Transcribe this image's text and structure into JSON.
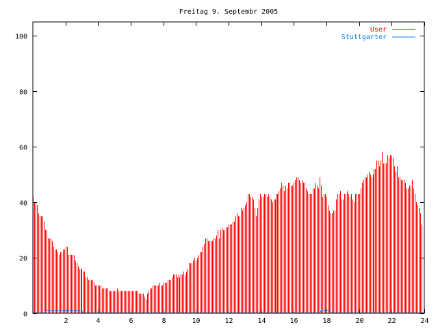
{
  "chart_data": {
    "type": "bar",
    "title": "Freitag 9. Septembr 2005",
    "xlabel": "",
    "ylabel": "",
    "xlim": [
      0,
      24
    ],
    "ylim": [
      0,
      105
    ],
    "xticks": [
      2,
      4,
      6,
      8,
      10,
      12,
      14,
      16,
      18,
      20,
      22,
      24
    ],
    "yticks": [
      0,
      20,
      40,
      60,
      80,
      100
    ],
    "grid": false,
    "legend": "top-right",
    "x_step_hours": 0.08333,
    "series": [
      {
        "name": "User",
        "color": "#ff0000",
        "style": "impulses",
        "values": [
          42,
          40,
          40,
          39,
          36,
          35,
          35,
          35,
          33,
          30,
          30,
          27,
          27,
          27,
          26,
          24,
          23,
          23,
          22,
          21,
          22,
          22,
          23,
          23,
          24,
          24,
          21,
          21,
          21,
          21,
          21,
          19,
          18,
          17,
          16,
          16,
          16,
          15,
          15,
          13,
          13,
          12,
          12,
          12,
          12,
          11,
          10,
          10,
          10,
          10,
          10,
          9,
          9,
          9,
          9,
          9,
          8,
          8,
          8,
          8,
          8,
          8,
          9,
          8,
          8,
          8,
          8,
          8,
          8,
          8,
          8,
          8,
          8,
          8,
          8,
          8,
          8,
          8,
          7,
          7,
          7,
          7,
          6,
          5,
          7,
          8,
          9,
          9,
          10,
          10,
          10,
          10,
          10,
          11,
          10,
          10,
          11,
          11,
          11,
          12,
          12,
          12,
          13,
          14,
          14,
          14,
          13,
          14,
          13,
          14,
          14,
          15,
          14,
          15,
          16,
          18,
          18,
          18,
          19,
          20,
          19,
          20,
          21,
          22,
          22,
          24,
          25,
          27,
          27,
          26,
          26,
          26,
          26,
          27,
          27,
          28,
          30,
          27,
          30,
          31,
          30,
          30,
          31,
          31,
          32,
          32,
          32,
          33,
          33,
          35,
          36,
          35,
          35,
          38,
          37,
          38,
          39,
          40,
          43,
          43,
          42,
          42,
          41,
          38,
          35,
          38,
          41,
          43,
          42,
          42,
          43,
          43,
          42,
          43,
          42,
          41,
          40,
          41,
          41,
          43,
          43,
          44,
          45,
          47,
          46,
          44,
          46,
          45,
          47,
          47,
          46,
          46,
          47,
          48,
          49,
          49,
          48,
          47,
          48,
          47,
          47,
          45,
          44,
          43,
          43,
          43,
          45,
          45,
          47,
          46,
          45,
          49,
          46,
          42,
          43,
          43,
          42,
          39,
          37,
          36,
          36,
          37,
          37,
          41,
          43,
          43,
          44,
          41,
          41,
          43,
          43,
          44,
          43,
          42,
          43,
          41,
          40,
          43,
          43,
          43,
          43,
          45,
          47,
          48,
          49,
          49,
          50,
          51,
          50,
          49,
          50,
          52,
          52,
          55,
          55,
          53,
          55,
          58,
          54,
          54,
          54,
          57,
          56,
          57,
          57,
          56,
          53,
          51,
          53,
          49,
          49,
          48,
          48,
          48,
          47,
          45,
          45,
          46,
          46,
          48,
          45,
          43,
          40,
          39,
          38,
          36,
          32
        ]
      },
      {
        "name": "Stuttgarter",
        "color": "#0080ff",
        "style": "lines",
        "x": [
          0,
          0.75,
          0.8,
          3.0,
          3.05,
          17.6,
          17.7,
          18.25,
          18.3,
          24
        ],
        "y": [
          0,
          0,
          1,
          1,
          0,
          0,
          1,
          1,
          0,
          0
        ]
      }
    ]
  }
}
